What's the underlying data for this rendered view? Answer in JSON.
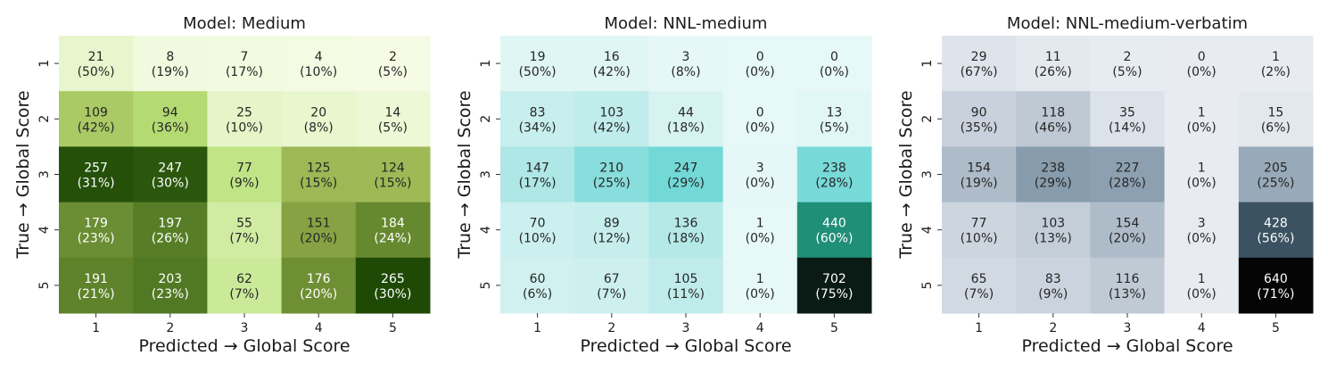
{
  "chart_data": [
    {
      "type": "heatmap",
      "title": "Model: Medium",
      "xlabel": "Predicted → Global Score",
      "ylabel": "True → Global Score",
      "x_categories": [
        "1",
        "2",
        "3",
        "4",
        "5"
      ],
      "y_categories": [
        "1",
        "2",
        "3",
        "4",
        "5"
      ],
      "values": [
        [
          21,
          8,
          7,
          4,
          2
        ],
        [
          109,
          94,
          25,
          20,
          14
        ],
        [
          257,
          247,
          77,
          125,
          124
        ],
        [
          179,
          197,
          55,
          151,
          184
        ],
        [
          191,
          203,
          62,
          176,
          265
        ]
      ],
      "percent_labels": [
        [
          "(50%)",
          "(19%)",
          "(17%)",
          "(10%)",
          "(5%)"
        ],
        [
          "(42%)",
          "(36%)",
          "(10%)",
          "(8%)",
          "(5%)"
        ],
        [
          "(31%)",
          "(30%)",
          "(9%)",
          "(15%)",
          "(15%)"
        ],
        [
          "(23%)",
          "(26%)",
          "(7%)",
          "(20%)",
          "(24%)"
        ],
        [
          "(21%)",
          "(23%)",
          "(7%)",
          "(20%)",
          "(30%)"
        ]
      ],
      "colormap": [
        "#f7fce8",
        "#d8f0b0",
        "#b8e077",
        "#98b04e",
        "#6e8f34",
        "#3d6a18",
        "#1e4a06"
      ],
      "vmax": 265
    },
    {
      "type": "heatmap",
      "title": "Model: NNL-medium",
      "xlabel": "Predicted → Global Score",
      "ylabel": "True → Global Score",
      "x_categories": [
        "1",
        "2",
        "3",
        "4",
        "5"
      ],
      "y_categories": [
        "1",
        "2",
        "3",
        "4",
        "5"
      ],
      "values": [
        [
          19,
          16,
          3,
          0,
          0
        ],
        [
          83,
          103,
          44,
          0,
          13
        ],
        [
          147,
          210,
          247,
          3,
          238
        ],
        [
          70,
          89,
          136,
          1,
          440
        ],
        [
          60,
          67,
          105,
          1,
          702
        ]
      ],
      "percent_labels": [
        [
          "(50%)",
          "(42%)",
          "(8%)",
          "(0%)",
          "(0%)"
        ],
        [
          "(34%)",
          "(42%)",
          "(18%)",
          "(0%)",
          "(5%)"
        ],
        [
          "(17%)",
          "(25%)",
          "(29%)",
          "(0%)",
          "(28%)"
        ],
        [
          "(10%)",
          "(12%)",
          "(18%)",
          "(0%)",
          "(60%)"
        ],
        [
          "(6%)",
          "(7%)",
          "(11%)",
          "(0%)",
          "(75%)"
        ]
      ],
      "colormap": [
        "#e6f8f7",
        "#b2e8e6",
        "#5ed4d2",
        "#22977f",
        "#155e4a",
        "#0a1a14"
      ],
      "vmax": 702
    },
    {
      "type": "heatmap",
      "title": "Model: NNL-medium-verbatim",
      "xlabel": "Predicted → Global Score",
      "ylabel": "True → Global Score",
      "x_categories": [
        "1",
        "2",
        "3",
        "4",
        "5"
      ],
      "y_categories": [
        "1",
        "2",
        "3",
        "4",
        "5"
      ],
      "values": [
        [
          29,
          11,
          2,
          0,
          1
        ],
        [
          90,
          118,
          35,
          1,
          15
        ],
        [
          154,
          238,
          227,
          1,
          205
        ],
        [
          77,
          103,
          154,
          3,
          428
        ],
        [
          65,
          83,
          116,
          1,
          640
        ]
      ],
      "percent_labels": [
        [
          "(67%)",
          "(26%)",
          "(5%)",
          "(0%)",
          "(2%)"
        ],
        [
          "(35%)",
          "(46%)",
          "(14%)",
          "(0%)",
          "(6%)"
        ],
        [
          "(19%)",
          "(29%)",
          "(28%)",
          "(0%)",
          "(25%)"
        ],
        [
          "(10%)",
          "(13%)",
          "(20%)",
          "(0%)",
          "(56%)"
        ],
        [
          "(7%)",
          "(9%)",
          "(13%)",
          "(0%)",
          "(71%)"
        ]
      ],
      "colormap": [
        "#e8ecf2",
        "#c3cdd8",
        "#94a6b6",
        "#5d7a8c",
        "#3a5262",
        "#1e2a33",
        "#050505"
      ],
      "vmax": 640
    }
  ]
}
